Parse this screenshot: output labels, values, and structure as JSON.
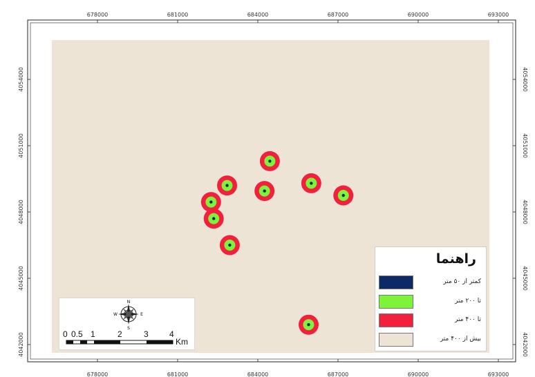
{
  "map": {
    "x_ticks": [
      "678000",
      "681000",
      "684000",
      "687000",
      "690000",
      "693000"
    ],
    "y_ticks": [
      "4054000",
      "4051000",
      "4048000",
      "4045000",
      "4042000"
    ]
  },
  "colors": {
    "background": "#ede4d6",
    "inner_ring": "#7df43a",
    "outer_ring": "#f21f3d",
    "core": "#0f2a66",
    "band_0_50": "#0d2a66"
  },
  "legend": {
    "title": "راهنما",
    "items": [
      {
        "label": "کمتر از ۵۰ متر",
        "color": "#0d2a66"
      },
      {
        "label": "تا ۲۰۰ متر",
        "color": "#7df43a"
      },
      {
        "label": "تا ۴۰۰ متر",
        "color": "#f21f3d"
      },
      {
        "label": "بیش از ۴۰۰ متر",
        "color": "#ede4d6"
      }
    ]
  },
  "compass": {
    "n": "N",
    "s": "S",
    "e": "E",
    "w": "W"
  },
  "scale_bar": {
    "labels": [
      "0",
      "0.5",
      "1",
      "2",
      "3",
      "4"
    ],
    "unit": "Km"
  },
  "wells": [
    {
      "x": 684450,
      "y": 4050300
    },
    {
      "x": 682850,
      "y": 4049200
    },
    {
      "x": 686000,
      "y": 4049300
    },
    {
      "x": 684250,
      "y": 4048950
    },
    {
      "x": 687200,
      "y": 4048750
    },
    {
      "x": 682250,
      "y": 4048450
    },
    {
      "x": 682350,
      "y": 4047700
    },
    {
      "x": 682950,
      "y": 4046500
    },
    {
      "x": 685900,
      "y": 4042900
    }
  ]
}
